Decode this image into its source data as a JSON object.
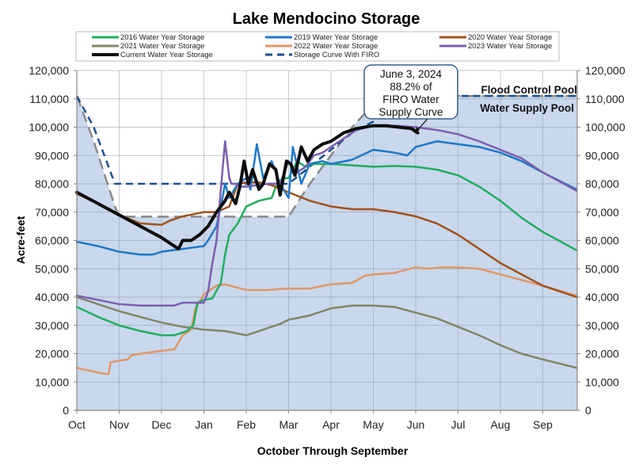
{
  "chart_data": {
    "type": "line",
    "title": "Lake Mendocino Storage",
    "xlabel": "October Through September",
    "ylabel": "Acre-feet",
    "ylim": [
      0,
      120000
    ],
    "xlim_months": [
      0,
      11.8
    ],
    "grid": true,
    "x_tick_labels": [
      "Oct",
      "Nov",
      "Dec",
      "Jan",
      "Feb",
      "Mar",
      "Apr",
      "May",
      "Jun",
      "Jul",
      "Aug",
      "Sep"
    ],
    "y_tick_labels": [
      "0",
      "10,000",
      "20,000",
      "30,000",
      "40,000",
      "50,000",
      "60,000",
      "70,000",
      "80,000",
      "90,000",
      "100,000",
      "110,000",
      "120,000"
    ],
    "y_ticks": [
      0,
      10000,
      20000,
      30000,
      40000,
      50000,
      60000,
      70000,
      80000,
      90000,
      100000,
      110000,
      120000
    ],
    "legend_position": "top",
    "annotations": {
      "callout_lines": [
        "June 3, 2024",
        "88.2% of",
        "FIRO Water",
        "Supply Curve"
      ],
      "flood_pool_label": "Flood Control Pool",
      "supply_pool_label": "Water Supply Pool"
    },
    "colors": {
      "fill": "#c9d8ec",
      "grid": "#8a97a8",
      "2016": "#1fae5f",
      "2019": "#1f78c8",
      "2020": "#a0521e",
      "2021": "#7f8768",
      "2022": "#e0966a",
      "2023": "#7b5fb0",
      "current": "#0d0d0d",
      "firo": "#1f4e8c",
      "storage": "#888888"
    },
    "series": [
      {
        "key": "2016",
        "name": "2016 Water Year Storage",
        "style": "solid",
        "width": 2.5,
        "x": [
          0,
          0.5,
          1,
          1.5,
          2,
          2.3,
          2.6,
          2.75,
          2.85,
          3,
          3.2,
          3.4,
          3.5,
          3.6,
          3.8,
          4,
          4.3,
          4.6,
          4.7,
          4.85,
          5,
          5.2,
          5.4,
          5.6,
          6,
          6.5,
          7,
          7.5,
          8,
          8.5,
          9,
          9.5,
          10,
          10.5,
          11,
          11.8
        ],
        "y": [
          36500,
          33000,
          30000,
          28000,
          26500,
          26500,
          28000,
          30000,
          38000,
          39000,
          39500,
          45000,
          55000,
          62000,
          66000,
          72000,
          74000,
          75000,
          79000,
          82000,
          82000,
          88000,
          86000,
          87000,
          87000,
          86500,
          86000,
          86300,
          86000,
          85000,
          83000,
          79000,
          74000,
          68000,
          63000,
          56500
        ]
      },
      {
        "key": "2019",
        "name": "2019 Water Year Storage",
        "style": "solid",
        "width": 2.5,
        "x": [
          0,
          0.5,
          1,
          1.5,
          1.8,
          2,
          2.5,
          3,
          3.1,
          3.3,
          3.4,
          3.5,
          3.6,
          3.8,
          4,
          4.1,
          4.25,
          4.4,
          4.6,
          4.8,
          5,
          5.1,
          5.3,
          5.5,
          5.8,
          6,
          6.5,
          7,
          7.5,
          7.8,
          8,
          8.5,
          9,
          9.5,
          10,
          10.5,
          11,
          11.8
        ],
        "y": [
          59500,
          58000,
          56000,
          55000,
          55000,
          56000,
          57000,
          58000,
          60000,
          65000,
          72000,
          80000,
          75000,
          80000,
          82000,
          78000,
          94000,
          82000,
          88000,
          80000,
          75000,
          93000,
          80000,
          87000,
          88000,
          87000,
          88500,
          92000,
          91000,
          90000,
          93000,
          95000,
          94000,
          93000,
          91000,
          88000,
          84000,
          78000
        ]
      },
      {
        "key": "2020",
        "name": "2020 Water Year Storage",
        "style": "solid",
        "width": 2.5,
        "x": [
          0,
          0.5,
          1,
          1.5,
          2,
          2.2,
          2.5,
          3,
          3.3,
          3.6,
          3.8,
          4,
          4.3,
          4.6,
          5,
          5.5,
          6,
          6.5,
          7,
          7.5,
          8,
          8.5,
          9,
          9.5,
          10,
          10.5,
          11,
          11.8
        ],
        "y": [
          76500,
          73000,
          69000,
          66000,
          65500,
          67000,
          68500,
          70000,
          70000,
          72000,
          80000,
          80500,
          80500,
          79500,
          77000,
          74000,
          72000,
          71000,
          71000,
          70000,
          68500,
          66000,
          62000,
          57000,
          52000,
          48000,
          44000,
          40000
        ]
      },
      {
        "key": "2021",
        "name": "2021 Water Year Storage",
        "style": "solid",
        "width": 2.5,
        "x": [
          0,
          0.5,
          1,
          1.5,
          2,
          2.5,
          3,
          3.5,
          4,
          4.5,
          4.8,
          5,
          5.5,
          6,
          6.5,
          7,
          7.5,
          8,
          8.5,
          9,
          9.5,
          10,
          10.5,
          11,
          11.8
        ],
        "y": [
          40000,
          37500,
          35000,
          33000,
          31000,
          29500,
          28500,
          28000,
          26500,
          29000,
          30500,
          32000,
          33500,
          36000,
          37000,
          37000,
          36500,
          34500,
          32500,
          29500,
          26500,
          23000,
          20000,
          18000,
          15000
        ]
      },
      {
        "key": "2022",
        "name": "2022 Water Year Storage",
        "style": "solid",
        "width": 2.5,
        "x": [
          0,
          0.3,
          0.6,
          0.75,
          0.8,
          1,
          1.2,
          1.3,
          1.5,
          2,
          2.3,
          2.5,
          2.6,
          2.7,
          2.8,
          3,
          3.3,
          3.5,
          4,
          4.5,
          5,
          5.5,
          6,
          6.5,
          6.8,
          7,
          7.5,
          8,
          8.3,
          8.6,
          9,
          9.5,
          10,
          10.5,
          11,
          11.8
        ],
        "y": [
          15000,
          14000,
          13000,
          12800,
          17000,
          17500,
          18000,
          19500,
          20000,
          21000,
          21500,
          26500,
          27500,
          28500,
          36000,
          41000,
          44000,
          44500,
          42500,
          42500,
          43000,
          43000,
          44500,
          45000,
          47500,
          48000,
          48500,
          50500,
          50000,
          50500,
          50500,
          50000,
          48000,
          46000,
          44000,
          40500
        ]
      },
      {
        "key": "2023",
        "name": "2023 Water Year Storage",
        "style": "solid",
        "width": 2.5,
        "x": [
          0,
          0.5,
          1,
          1.5,
          2,
          2.3,
          2.5,
          3,
          3.1,
          3.2,
          3.3,
          3.4,
          3.5,
          3.6,
          3.65,
          3.75,
          3.85,
          4,
          4.5,
          4.8,
          5,
          5.2,
          5.4,
          5.6,
          5.8,
          6,
          6.3,
          6.6,
          7,
          7.5,
          8,
          8.5,
          9,
          9.5,
          10,
          10.5,
          11,
          11.8
        ],
        "y": [
          40500,
          39000,
          37500,
          37000,
          37000,
          37000,
          38000,
          38000,
          42000,
          52000,
          60000,
          78000,
          95000,
          82000,
          80000,
          80000,
          79000,
          79000,
          80000,
          80000,
          88000,
          84000,
          86000,
          90000,
          91000,
          93000,
          96000,
          99000,
          100500,
          100500,
          100000,
          99000,
          97500,
          95000,
          92000,
          89000,
          84000,
          77500
        ]
      },
      {
        "key": "current",
        "name": "Current Water Year Storage",
        "style": "solid",
        "width": 4,
        "x": [
          0,
          0.5,
          1,
          1.5,
          2,
          2.4,
          2.5,
          2.7,
          2.9,
          3.1,
          3.3,
          3.4,
          3.5,
          3.6,
          3.75,
          3.85,
          3.95,
          4.05,
          4.15,
          4.3,
          4.4,
          4.55,
          4.7,
          4.8,
          4.95,
          5.05,
          5.15,
          5.3,
          5.45,
          5.6,
          5.8,
          6,
          6.3,
          6.6,
          7,
          7.3,
          7.6,
          7.9,
          8.05
        ],
        "y": [
          77000,
          73000,
          69000,
          65000,
          61000,
          57000,
          60000,
          60000,
          62000,
          65000,
          70000,
          72000,
          74000,
          77000,
          73000,
          79000,
          88000,
          80000,
          85000,
          78000,
          80000,
          87000,
          85000,
          76000,
          88000,
          87000,
          83000,
          93000,
          88000,
          92000,
          94000,
          95000,
          98000,
          99500,
          100500,
          100500,
          100000,
          99500,
          98000
        ]
      },
      {
        "key": "firo",
        "name": "Storage Curve With FIRO",
        "style": "dashed",
        "width": 2.5,
        "x": [
          0,
          0.4,
          0.9,
          1,
          3.2,
          3.3,
          3.6,
          4,
          5,
          5.5,
          6,
          6.5,
          7,
          7.5,
          11.8
        ],
        "y": [
          111000,
          100000,
          80000,
          80000,
          80000,
          80000,
          80000,
          80000,
          80000,
          86000,
          92000,
          98000,
          102000,
          111000,
          111000
        ]
      },
      {
        "key": "storage",
        "name": "Storage Curve",
        "style": "dashed",
        "width": 2.5,
        "legend": false,
        "x": [
          0,
          0.4,
          0.9,
          1,
          3.2,
          3.6,
          4,
          4.5,
          5,
          5.5,
          6,
          6.5,
          7,
          7.5,
          11.8
        ],
        "y": [
          111000,
          95000,
          72000,
          68400,
          68400,
          68400,
          68400,
          68400,
          68400,
          80000,
          90000,
          100000,
          108000,
          111000,
          111000
        ]
      }
    ],
    "legend_entries": [
      {
        "key": "2016",
        "label": "2016 Water Year Storage"
      },
      {
        "key": "2019",
        "label": "2019 Water Year Storage"
      },
      {
        "key": "2020",
        "label": "2020 Water Year Storage"
      },
      {
        "key": "2021",
        "label": "2021 Water Year Storage"
      },
      {
        "key": "2022",
        "label": "2022 Water Year Storage"
      },
      {
        "key": "2023",
        "label": "2023 Water Year Storage"
      },
      {
        "key": "current",
        "label": "Current Water Year Storage"
      },
      {
        "key": "firo",
        "label": "Storage Curve With FIRO"
      }
    ]
  }
}
